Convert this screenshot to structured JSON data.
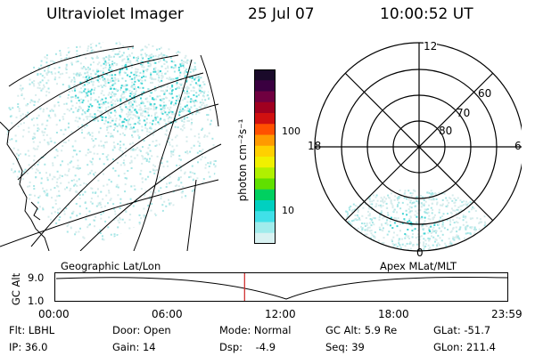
{
  "header": {
    "instrument": "Ultraviolet Imager",
    "date": "25 Jul 07",
    "time": "10:00:52 UT"
  },
  "colorbar": {
    "unit_label": "photon cm⁻²s⁻¹",
    "tick_labels": [
      "100",
      "10"
    ],
    "colors": [
      "#1a0a2a",
      "#3a0040",
      "#700040",
      "#a00020",
      "#d01010",
      "#ff5000",
      "#ff9a00",
      "#ffd000",
      "#f0f000",
      "#b0f000",
      "#60e000",
      "#00d060",
      "#00d0c0",
      "#40e0e8",
      "#a0ecec",
      "#d8f2f2"
    ]
  },
  "polar_plot": {
    "mlt_labels": [
      "12",
      "18",
      "6",
      "0"
    ],
    "lat_labels": [
      "60",
      "70",
      "80"
    ]
  },
  "timeline": {
    "left_label": "Geographic Lat/Lon",
    "right_label": "Apex MLat/MLT",
    "axis_label": "GC Alt",
    "y_ticks": [
      "9.0",
      "1.0"
    ],
    "x_ticks": [
      "00:00",
      "06:00",
      "12:00",
      "18:00",
      "23:59"
    ],
    "marker_time": "10:00:52"
  },
  "status": {
    "row1": [
      {
        "key": "flt",
        "text": "Flt: LBHL"
      },
      {
        "key": "door",
        "text": "Door: Open"
      },
      {
        "key": "mode",
        "text": "Mode: Normal"
      },
      {
        "key": "gcalt",
        "text": "GC Alt: 5.9 Re"
      },
      {
        "key": "glat",
        "text": "GLat: -51.7"
      }
    ],
    "row2": [
      {
        "key": "ip",
        "text": "IP: 36.0"
      },
      {
        "key": "gain",
        "text": "Gain: 14"
      },
      {
        "key": "dsp",
        "text": "Dsp:    -4.9"
      },
      {
        "key": "seq",
        "text": "Seq: 39"
      },
      {
        "key": "glon",
        "text": "GLon: 211.4"
      }
    ]
  },
  "colors": {
    "aurora_low": "#d6ecec",
    "aurora_mid": "#a6e6e6",
    "aurora_high": "#3fd4d4",
    "marker": "#cc2222"
  }
}
